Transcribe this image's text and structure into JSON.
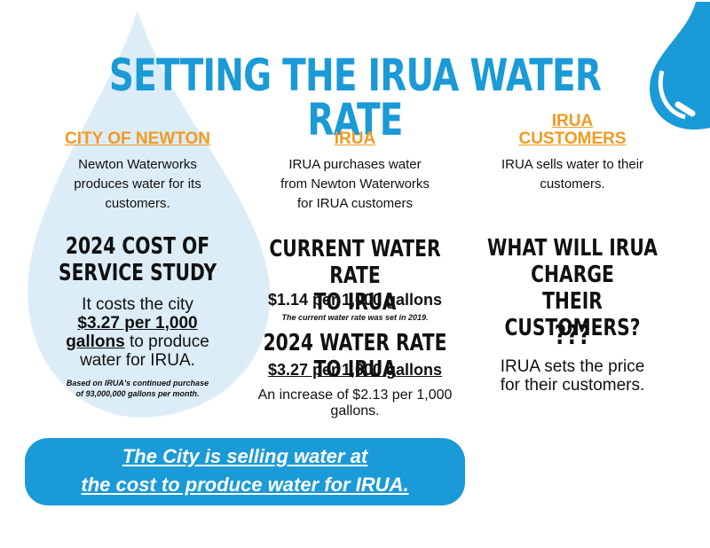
{
  "title": "SETTING THE IRUA WATER RATE",
  "columns": {
    "newton": {
      "heading": "CITY OF NEWTON",
      "desc": [
        "Newton Waterworks",
        "produces water for its",
        "customers."
      ],
      "sub_heading": [
        "2024 COST OF",
        "SERVICE STUDY"
      ],
      "body_pre": "It costs the city",
      "body_rate_1": "$3.27 per 1,000",
      "body_rate_2": "gallons",
      "body_post_1": " to produce",
      "body_post_2": "water for IRUA.",
      "note": [
        "Based on IRUA's continued purchase",
        "of 93,000,000 gallons per month."
      ]
    },
    "irua": {
      "heading": "IRUA",
      "desc": [
        "IRUA purchases water",
        "from Newton Waterworks",
        "for IRUA customers"
      ],
      "current_heading": [
        "CURRENT WATER RATE",
        "TO IRUA"
      ],
      "current_rate": "$1.14 per 1,000 gallons",
      "current_note": "The current water rate was set in 2019.",
      "new_heading": "2024 WATER RATE TO IRUA",
      "new_rate": "$3.27 per 1,000 gallons",
      "increase": [
        "An increase of $2.13 per 1,000",
        "gallons."
      ]
    },
    "customers": {
      "heading": [
        "IRUA",
        "CUSTOMERS"
      ],
      "desc": [
        "IRUA sells water to their",
        "customers."
      ],
      "question": [
        "WHAT WILL IRUA",
        "CHARGE",
        "THEIR CUSTOMERS?"
      ],
      "marks": "???",
      "body": [
        "IRUA sets the price",
        "for their customers."
      ]
    }
  },
  "banner": [
    "The City is selling water at",
    "the cost to produce water for IRUA."
  ],
  "colors": {
    "blue": "#1a9ad6",
    "orange": "#f39a21",
    "light_drop": "#d7ecf7"
  }
}
